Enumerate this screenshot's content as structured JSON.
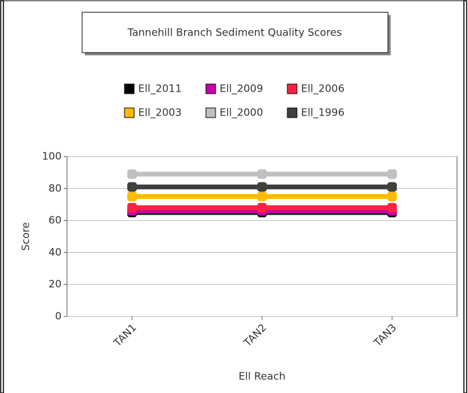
{
  "chart_data": {
    "type": "line",
    "title": "Tannehill Branch Sediment Quality Scores",
    "x_label": "Ell Reach",
    "y_label": "Score",
    "categories": [
      "TAN1",
      "TAN2",
      "TAN3"
    ],
    "series": [
      {
        "name": "Ell_2011",
        "color": "#000000",
        "values": [
          65,
          65,
          65
        ]
      },
      {
        "name": "Ell_2009",
        "color": "#cc00aa",
        "values": [
          66,
          66,
          66
        ]
      },
      {
        "name": "Ell_2006",
        "color": "#ff2244",
        "values": [
          68,
          68,
          68
        ]
      },
      {
        "name": "Ell_2003",
        "color": "#ffbb00",
        "values": [
          75,
          75,
          75
        ]
      },
      {
        "name": "Ell_2000",
        "color": "#c0c0c0",
        "values": [
          89,
          89,
          89
        ]
      },
      {
        "name": "Ell_1996",
        "color": "#404040",
        "values": [
          81,
          81,
          81
        ]
      }
    ],
    "ylim": [
      0,
      100
    ],
    "yticks": [
      0,
      20,
      40,
      60,
      80,
      100
    ],
    "grid": true
  }
}
